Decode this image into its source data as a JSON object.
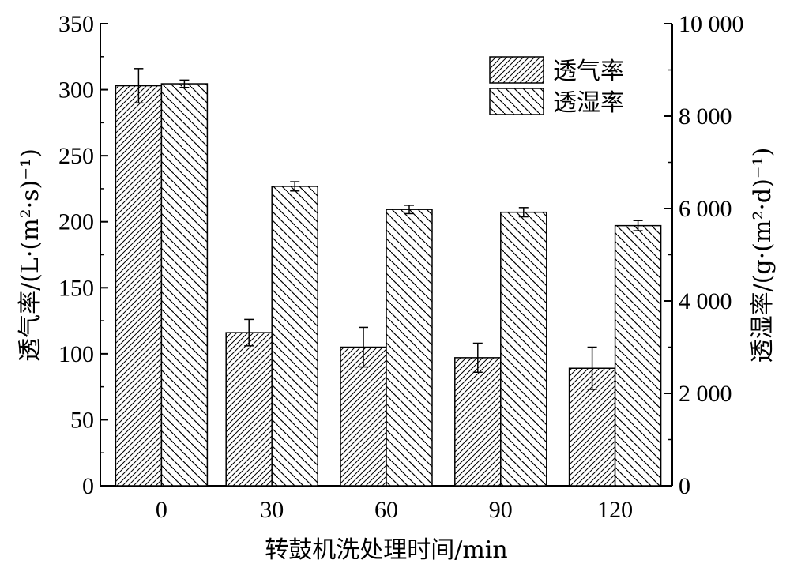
{
  "chart_data": {
    "type": "bar",
    "categories": [
      "0",
      "30",
      "60",
      "90",
      "120"
    ],
    "xlabel": "转鼓机洗处理时间/min",
    "ylabel_left": "透气率/(L·(m²·s)⁻¹)",
    "ylabel_right": "透湿率/(g·(m²·d)⁻¹)",
    "ylim_left": [
      0,
      350
    ],
    "ylim_right": [
      0,
      10000
    ],
    "yticks_left": [
      0,
      50,
      100,
      150,
      200,
      250,
      300,
      350
    ],
    "yticks_left_labels": [
      "0",
      "50",
      "100",
      "150",
      "200",
      "250",
      "300",
      "350"
    ],
    "yticks_right": [
      0,
      2000,
      4000,
      6000,
      8000,
      10000
    ],
    "yticks_right_labels": [
      "0",
      "2 000",
      "4 000",
      "6 000",
      "8 000",
      "10 000"
    ],
    "grid": false,
    "legend_position": "top-right",
    "series": [
      {
        "name": "透气率",
        "axis": "left",
        "pattern": "forward-hatch",
        "values": [
          303,
          116,
          105,
          97,
          89
        ],
        "errors": [
          13,
          10,
          15,
          11,
          16
        ]
      },
      {
        "name": "透湿率",
        "axis": "right",
        "pattern": "back-hatch",
        "values": [
          8700,
          6480,
          5980,
          5920,
          5630
        ],
        "errors": [
          80,
          100,
          90,
          100,
          110
        ]
      }
    ]
  }
}
